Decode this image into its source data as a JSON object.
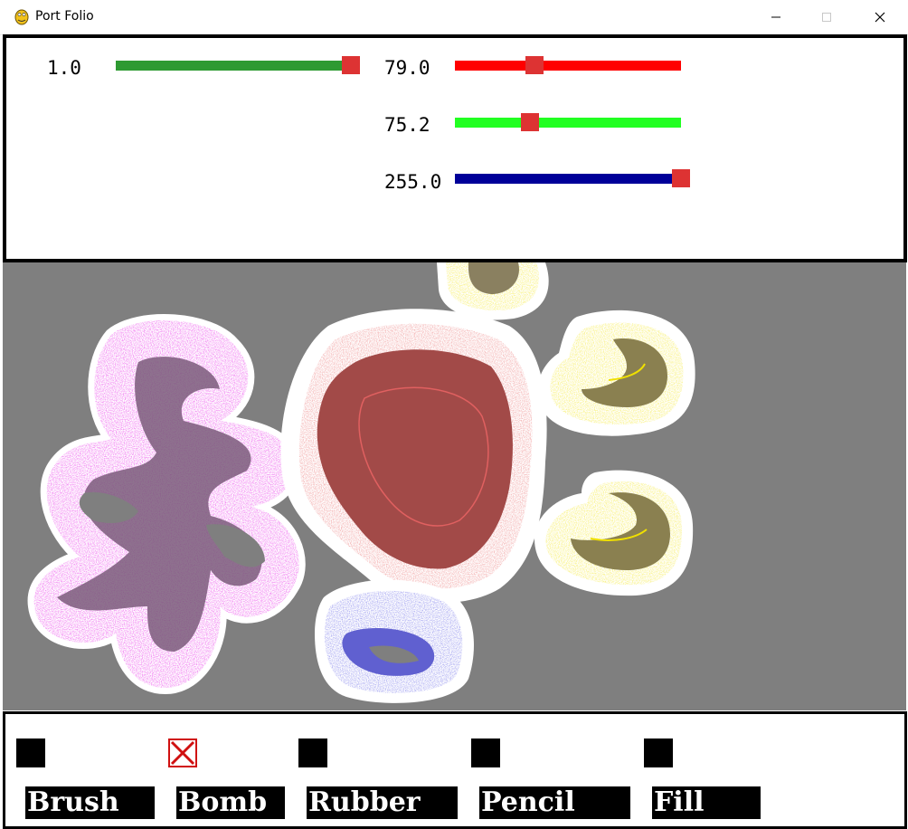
{
  "window": {
    "title": "Port Folio",
    "app_icon": "python-snake-icon",
    "controls": [
      "minimize-icon",
      "maximize-icon",
      "close-icon"
    ]
  },
  "sliders": {
    "brush_size": {
      "label": "1.0",
      "value": 1.0,
      "min": 0,
      "max": 1,
      "fraction": 1.0,
      "track_color": "#2e9a32"
    },
    "red": {
      "label": "79.0",
      "value": 79.0,
      "min": 0,
      "max": 255,
      "fraction": 0.35,
      "track_color": "#ff0000"
    },
    "green": {
      "label": "75.2",
      "value": 75.2,
      "min": 0,
      "max": 255,
      "fraction": 0.33,
      "track_color": "#22ff22"
    },
    "blue": {
      "label": "255.0",
      "value": 255.0,
      "min": 0,
      "max": 255,
      "fraction": 1.0,
      "track_color": "#000099"
    },
    "thumb_color": "#dd3333"
  },
  "canvas": {
    "background": "#7f7f7f",
    "blobs": [
      {
        "name": "pink-blob",
        "color": "#f070f0"
      },
      {
        "name": "red-blob",
        "color": "#d04848"
      },
      {
        "name": "blue-blob",
        "color": "#5050e0"
      },
      {
        "name": "yellow-blob-top",
        "color": "#f0f030"
      },
      {
        "name": "yellow-blob-right",
        "color": "#f0f030"
      },
      {
        "name": "yellow-blob-bottom",
        "color": "#f0f030"
      }
    ]
  },
  "tools": {
    "items": [
      {
        "label": "Brush",
        "selected": false
      },
      {
        "label": "Bomb",
        "selected": true
      },
      {
        "label": "Rubber",
        "selected": false
      },
      {
        "label": "Pencil",
        "selected": false
      },
      {
        "label": "Fill",
        "selected": false
      }
    ],
    "selected_mark_color": "#d01010"
  }
}
